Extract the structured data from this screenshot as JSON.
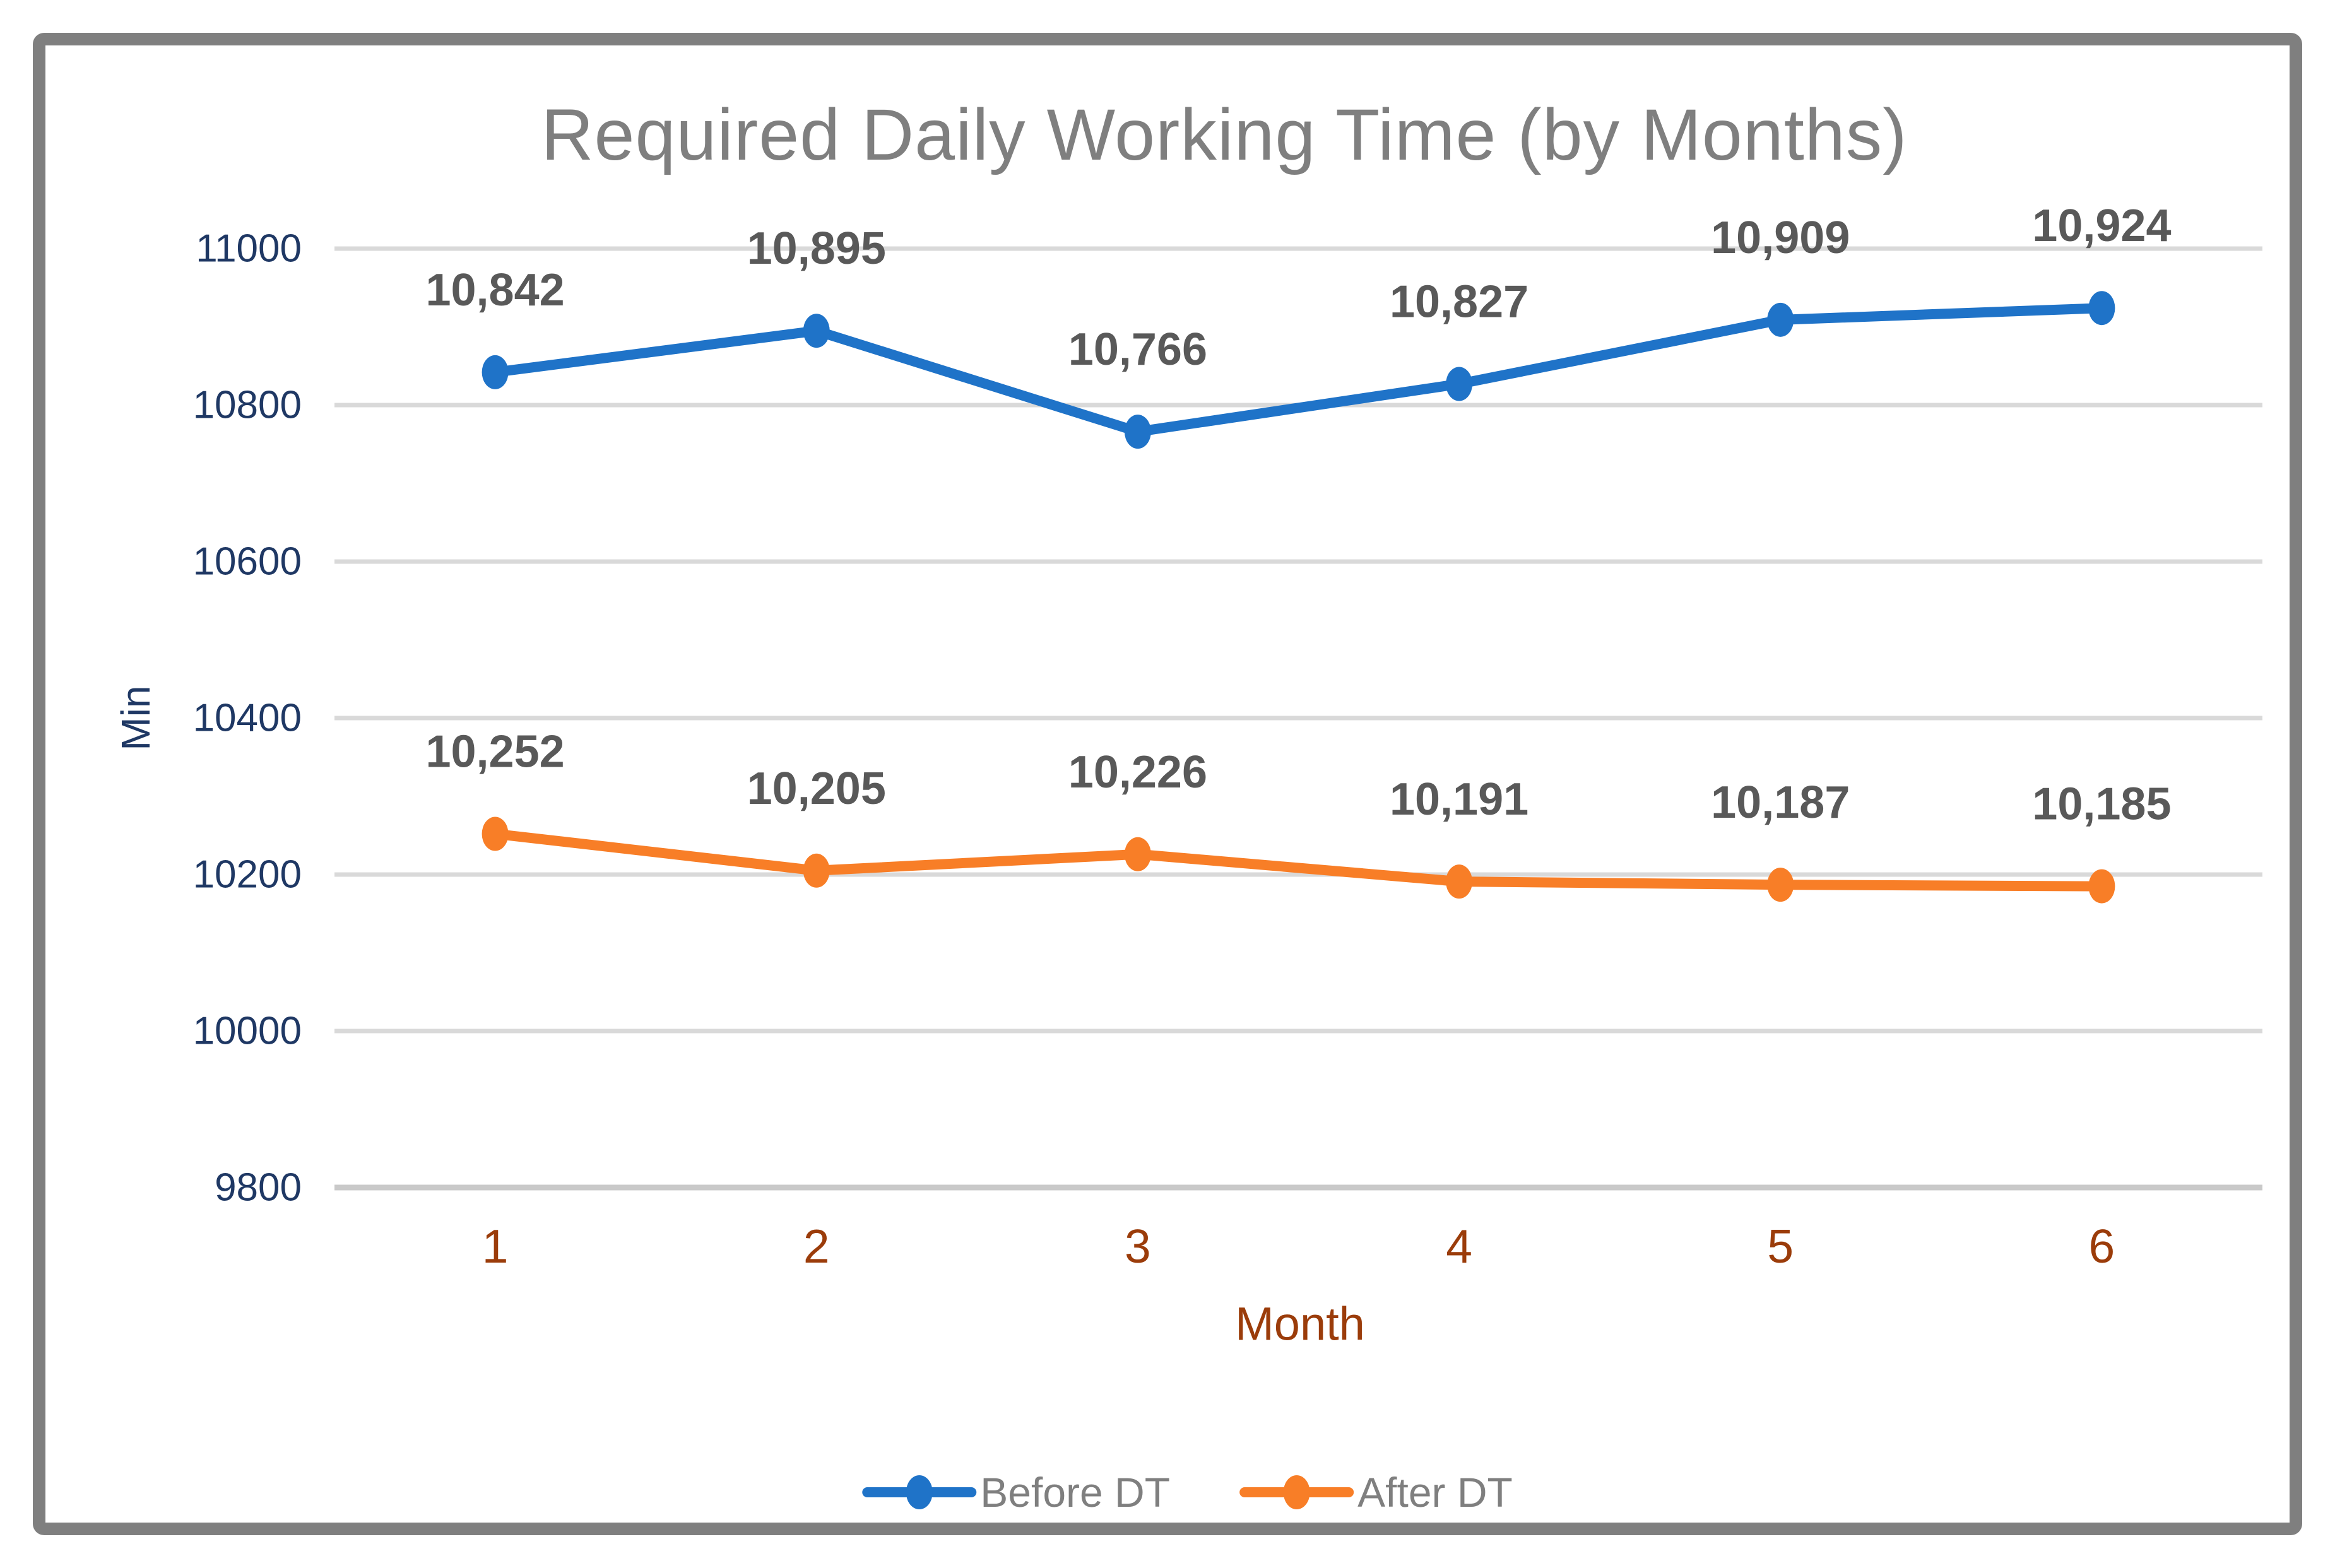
{
  "frame": {
    "background": "#FFFFFF",
    "border_color": "#7F7F7F"
  },
  "chart_data": {
    "type": "line",
    "title": "Required Daily Working Time (by Months)",
    "xlabel": "Month",
    "ylabel": "Min",
    "categories": [
      "1",
      "2",
      "3",
      "4",
      "5",
      "6"
    ],
    "series": [
      {
        "name": "Before DT",
        "color": "#1F73C8",
        "values": [
          10842,
          10895,
          10766,
          10827,
          10909,
          10924
        ]
      },
      {
        "name": "After DT",
        "color": "#F87E27",
        "values": [
          10252,
          10205,
          10226,
          10191,
          10187,
          10185
        ]
      }
    ],
    "ylim": [
      9800,
      11000
    ],
    "ytick_step": 200,
    "yticks": [
      9800,
      10000,
      10200,
      10400,
      10600,
      10800,
      11000
    ],
    "grid": "horizontal-only",
    "legend_position": "bottom",
    "data_labels": "above-points, thousands-separated",
    "style": {
      "title_color": "#7F7F7F",
      "data_label_color": "#595959",
      "y_tick_color": "#1F3864",
      "x_tick_color": "#9B3C0A",
      "y_axis_title_color": "#1F3864",
      "x_axis_title_color": "#9B3C0A",
      "legend_text_color": "#7F7F7F",
      "gridline_color": "#D9D9D9",
      "bottom_gridline_color": "#C9C9C9",
      "frame_border_color": "#7F7F7F",
      "background": "#FFFFFF"
    }
  }
}
